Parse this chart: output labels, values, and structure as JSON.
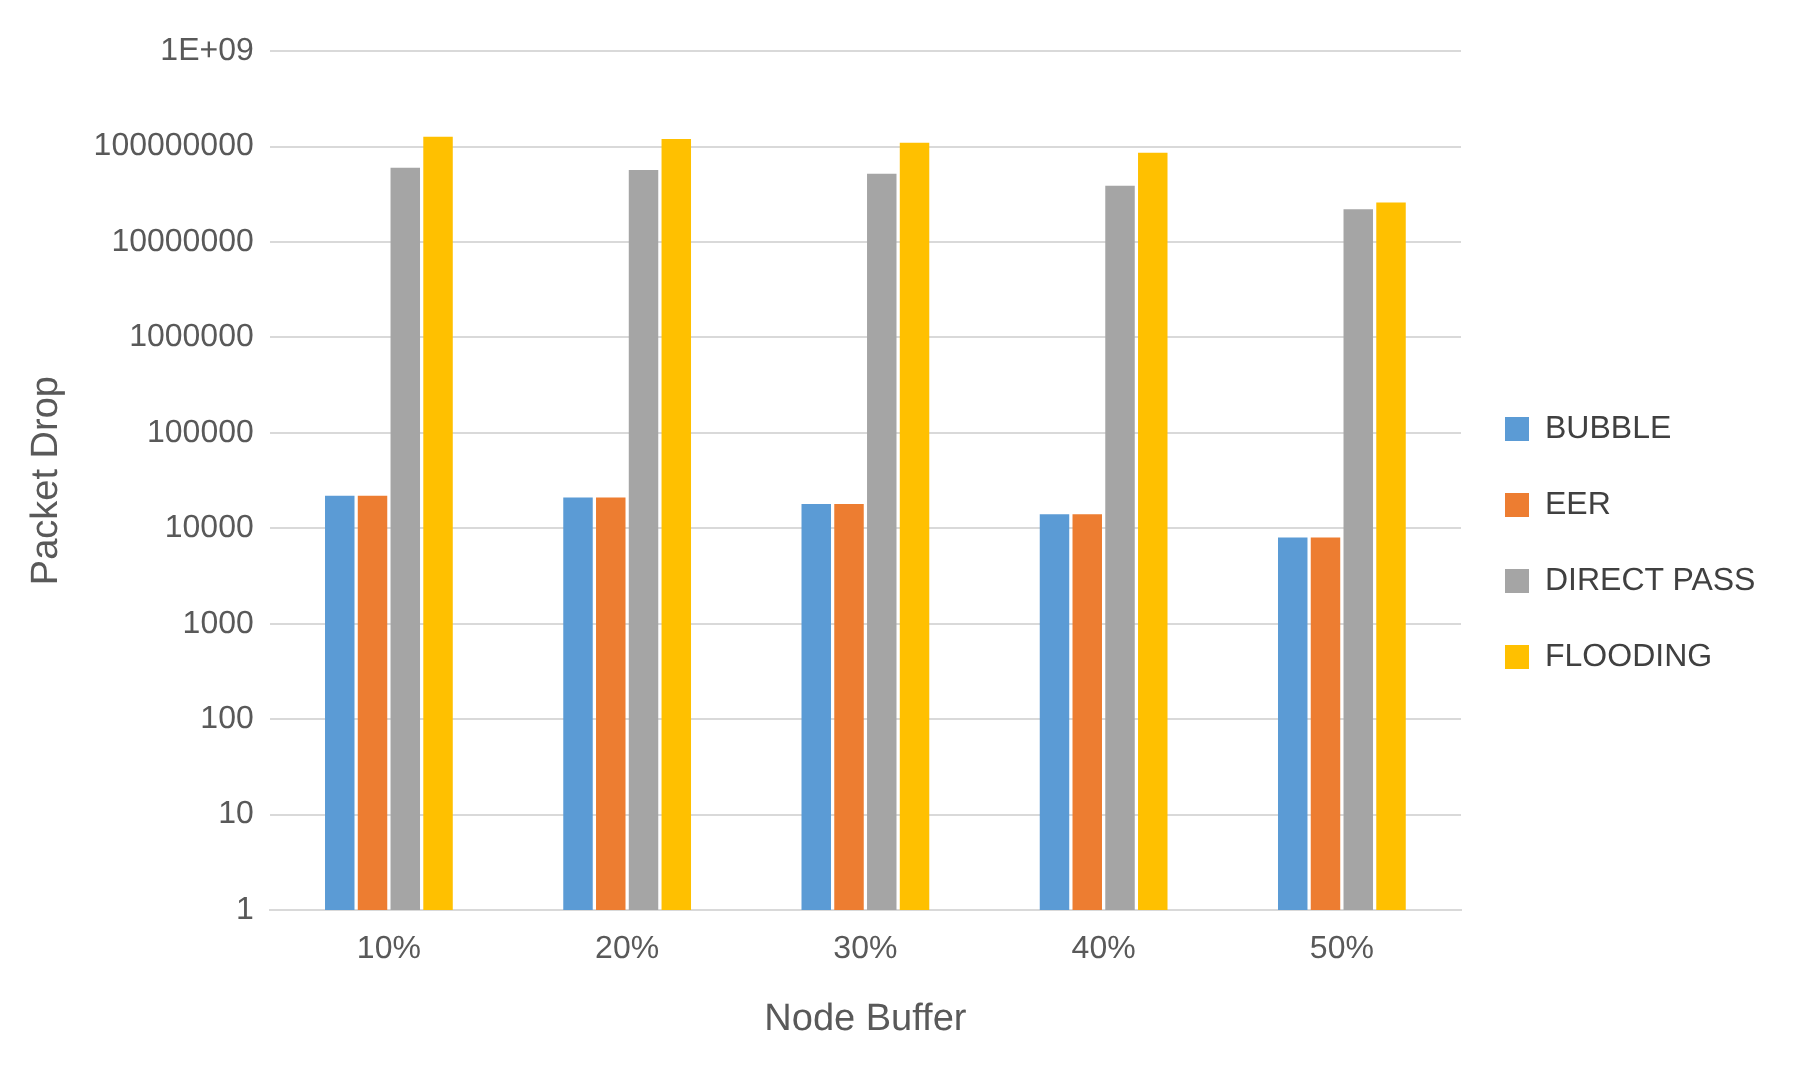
{
  "chart_data": {
    "type": "bar",
    "xlabel": "Node Buffer",
    "ylabel": "Packet Drop",
    "categories": [
      "10%",
      "20%",
      "30%",
      "40%",
      "50%"
    ],
    "series": [
      {
        "name": "BUBBLE",
        "color": "#5b9bd5",
        "values": [
          22000,
          21000,
          18000,
          14000,
          8000
        ]
      },
      {
        "name": "EER",
        "color": "#ed7d31",
        "values": [
          22000,
          21000,
          18000,
          14000,
          8000
        ]
      },
      {
        "name": "DIRECT PASS",
        "color": "#a5a5a5",
        "values": [
          60000000,
          57000000,
          52000000,
          39000000,
          22000000
        ]
      },
      {
        "name": "FLOODING",
        "color": "#ffc000",
        "values": [
          127000000,
          120000000,
          110000000,
          86000000,
          26000000
        ]
      }
    ],
    "log": "y",
    "ylim": [
      1,
      1000000000
    ],
    "yticks": [
      1,
      10,
      100,
      1000,
      10000,
      100000,
      1000000,
      10000000,
      100000000,
      {
        "value": 1000000000,
        "label": "1E+09"
      }
    ],
    "grid": "y",
    "legend": "right"
  }
}
